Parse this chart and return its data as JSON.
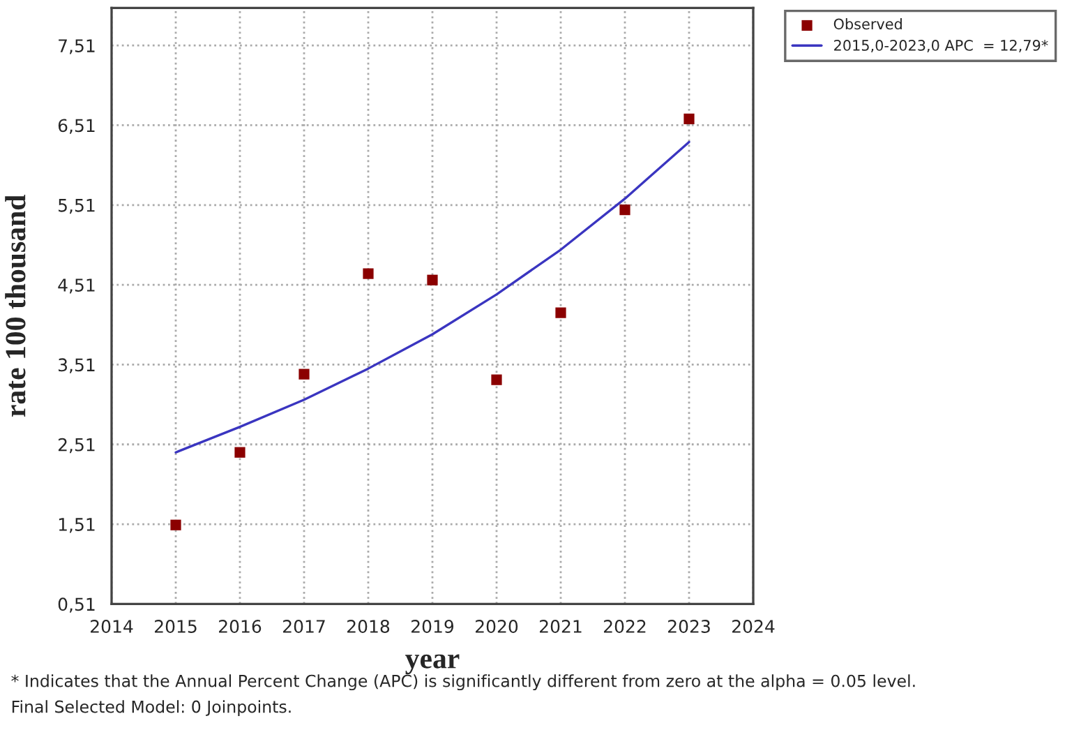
{
  "chart_data": {
    "type": "scatter",
    "xlabel": "year",
    "ylabel": "rate 100 thousand",
    "xlim": [
      2014,
      2024
    ],
    "xticks": [
      2014,
      2015,
      2016,
      2017,
      2018,
      2019,
      2020,
      2021,
      2022,
      2023,
      2024
    ],
    "ylim": [
      0.51,
      7.98
    ],
    "yticks": [
      {
        "value": 0.51,
        "label": "0,51"
      },
      {
        "value": 1.51,
        "label": "1,51"
      },
      {
        "value": 2.51,
        "label": "2,51"
      },
      {
        "value": 3.51,
        "label": "3,51"
      },
      {
        "value": 4.51,
        "label": "4,51"
      },
      {
        "value": 5.51,
        "label": "5,51"
      },
      {
        "value": 6.51,
        "label": "6,51"
      },
      {
        "value": 7.51,
        "label": "7,51"
      }
    ],
    "grid": true,
    "legend": "top right",
    "series": [
      {
        "name": "Observed",
        "marker": "square",
        "color": "#8b0000",
        "x": [
          2015,
          2016,
          2017,
          2018,
          2019,
          2020,
          2021,
          2022,
          2023
        ],
        "values": [
          1.5,
          2.41,
          3.39,
          4.65,
          4.57,
          3.32,
          4.16,
          5.45,
          6.59
        ]
      },
      {
        "name": "2015,0-2023,0 APC  = 12,79*",
        "type": "line",
        "line_style": "solid",
        "color": "#3a35c0",
        "x": [
          2015,
          2016,
          2017,
          2018,
          2019,
          2020,
          2021,
          2022,
          2023
        ],
        "values": [
          2.41,
          2.73,
          3.07,
          3.46,
          3.89,
          4.39,
          4.95,
          5.59,
          6.3
        ]
      }
    ],
    "annotations": [
      "* Indicates that the Annual Percent Change (APC) is significantly different from zero at the alpha = 0.05 level.",
      "Final Selected Model: 0 Joinpoints."
    ]
  }
}
